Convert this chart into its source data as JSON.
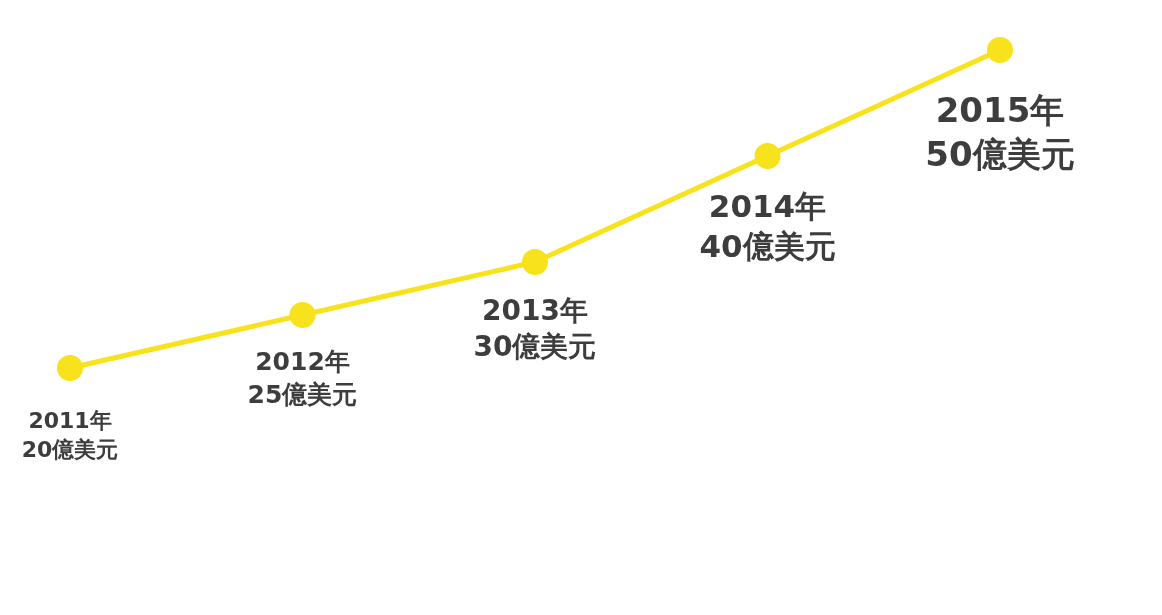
{
  "chart_data": {
    "type": "line",
    "categories": [
      "2011年",
      "2012年",
      "2013年",
      "2014年",
      "2015年"
    ],
    "series": [
      {
        "color": "#f7e21b",
        "values": [
          20,
          25,
          30,
          40,
          50
        ],
        "value_labels": [
          "20億美元",
          "25億美元",
          "30億美元",
          "40億美元",
          "50億美元"
        ]
      }
    ],
    "marker": "circle",
    "line_style": "solid",
    "grid": false
  }
}
